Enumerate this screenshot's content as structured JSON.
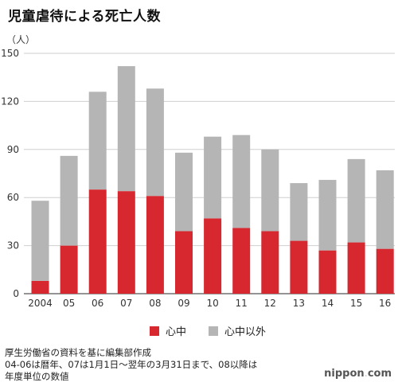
{
  "chart_data": {
    "type": "bar",
    "stacked": true,
    "title": "児童虐待による死亡人数",
    "ylabel": "（人）",
    "xlabel": "",
    "ylim": [
      0,
      150
    ],
    "yticks": [
      0,
      30,
      60,
      90,
      120,
      150
    ],
    "categories": [
      "2004",
      "05",
      "06",
      "07",
      "08",
      "09",
      "10",
      "11",
      "12",
      "13",
      "14",
      "15",
      "16"
    ],
    "series": [
      {
        "name": "心中",
        "color": "#d7282f",
        "values": [
          8,
          30,
          65,
          64,
          61,
          39,
          47,
          41,
          39,
          33,
          27,
          32,
          28
        ]
      },
      {
        "name": "心中以外",
        "color": "#b5b5b5",
        "values": [
          50,
          56,
          61,
          78,
          67,
          49,
          51,
          58,
          51,
          36,
          44,
          52,
          49
        ]
      }
    ],
    "grid": true,
    "legend_position": "bottom"
  },
  "footnotes": [
    "厚生労働省の資料を基に編集部作成",
    "04-06は暦年、07は1月1日～翌年の3月31日まで、08以降は",
    "年度単位の数値"
  ],
  "brand": {
    "name": "nippon",
    "dot": ".",
    "suffix": "com"
  }
}
